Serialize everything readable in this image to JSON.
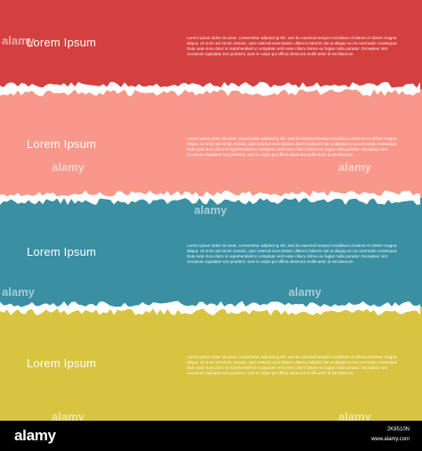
{
  "colors": {
    "red": "#d4403f",
    "salmon": "#f8988a",
    "teal": "#3a8fa3",
    "mustard": "#d8c441",
    "paper_edge": "#ffffff",
    "footer": "#000000"
  },
  "bands": [
    {
      "title": "Lorem Ipsum",
      "body": "Lorem ipsum dolor sit amet, consectetur adipiscing elit, sed do eiusmod tempor incididunt ut labore et dolore magna aliqua. Ut enim ad minim veniam, quis nostrud exercitation ullamco laboris nisi ut aliquip ex ea commodo consequat. Duis aute irure dolor in reprehenderit in voluptate velit esse cillum dolore eu fugiat nulla pariatur. Excepteur sint occaecat cupidatat non proident, sunt in culpa qui officia deserunt mollit anim id est laborum."
    },
    {
      "title": "Lorem Ipsum",
      "body": "Lorem ipsum dolor sit amet, consectetur adipiscing elit, sed do eiusmod tempor incididunt ut labore et dolore magna aliqua. Ut enim ad minim veniam, quis nostrud exercitation ullamco laboris nisi ut aliquip ex ea commodo consequat. Duis aute irure dolor in reprehenderit in voluptate velit esse cillum dolore eu fugiat nulla pariatur. Excepteur sint occaecat cupidatat non proident, sunt in culpa qui officia deserunt mollit anim id est laborum."
    },
    {
      "title": "Lorem Ipsum",
      "body": "Lorem ipsum dolor sit amet, consectetur adipiscing elit, sed do eiusmod tempor incididunt ut labore et dolore magna aliqua. Ut enim ad minim veniam, quis nostrud exercitation ullamco laboris nisi ut aliquip ex ea commodo consequat. Duis aute irure dolor in reprehenderit in voluptate velit esse cillum dolore eu fugiat nulla pariatur. Excepteur sint occaecat cupidatat non proident, sunt in culpa qui officia deserunt mollit anim id est laborum."
    },
    {
      "title": "Lorem Ipsum",
      "body": "Lorem ipsum dolor sit amet, consectetur adipiscing elit, sed do eiusmod tempor incididunt ut labore et dolore magna aliqua. Ut enim ad minim veniam, quis nostrud exercitation ullamco laboris nisi ut aliquip ex ea commodo consequat. Duis aute irure dolor in reprehenderit in voluptate velit esse cillum dolore eu fugiat nulla pariatur. Excepteur sint occaecat cupidatat non proident, sunt in culpa qui officia deserunt mollit anim id est laborum."
    }
  ],
  "watermark": {
    "text": "alamy"
  },
  "footer": {
    "logo": "alamy",
    "image_id": "2K8510N",
    "site": "www.alamy.com"
  }
}
